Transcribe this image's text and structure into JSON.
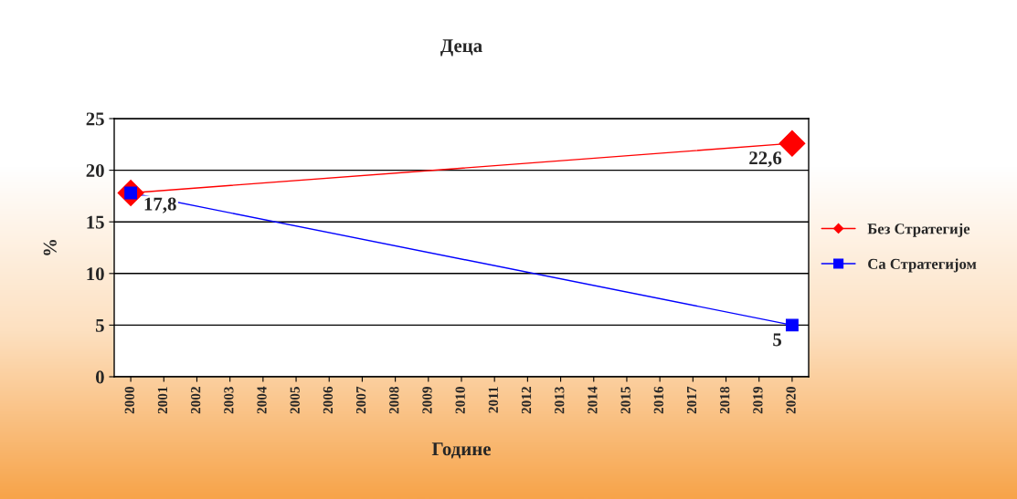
{
  "chart_data": {
    "type": "line",
    "title": "Деца",
    "xlabel": "Године",
    "ylabel": "%",
    "categories": [
      "2000",
      "2001",
      "2002",
      "2003",
      "2004",
      "2005",
      "2006",
      "2007",
      "2008",
      "2009",
      "2010",
      "2011",
      "2012",
      "2013",
      "2014",
      "2015",
      "2016",
      "2017",
      "2018",
      "2019",
      "2020"
    ],
    "series": [
      {
        "name": "Без Стратегије",
        "color": "#ff0000",
        "marker": "diamond",
        "values": [
          17.8,
          null,
          null,
          null,
          null,
          null,
          null,
          null,
          null,
          null,
          null,
          null,
          null,
          null,
          null,
          null,
          null,
          null,
          null,
          null,
          22.6
        ],
        "value_labels": [
          null,
          null,
          null,
          null,
          null,
          null,
          null,
          null,
          null,
          null,
          null,
          null,
          null,
          null,
          null,
          null,
          null,
          null,
          null,
          null,
          "22,6"
        ]
      },
      {
        "name": "Са Стратегијом",
        "color": "#0000ff",
        "marker": "square",
        "values": [
          17.8,
          null,
          null,
          null,
          null,
          null,
          null,
          null,
          null,
          null,
          null,
          null,
          null,
          null,
          null,
          null,
          null,
          null,
          null,
          null,
          5
        ],
        "value_labels": [
          "17,8",
          null,
          null,
          null,
          null,
          null,
          null,
          null,
          null,
          null,
          null,
          null,
          null,
          null,
          null,
          null,
          null,
          null,
          null,
          null,
          "5"
        ]
      }
    ],
    "ylim": [
      0,
      25
    ],
    "yticks": [
      0,
      5,
      10,
      15,
      20,
      25
    ],
    "grid": "y",
    "legend": "right"
  }
}
